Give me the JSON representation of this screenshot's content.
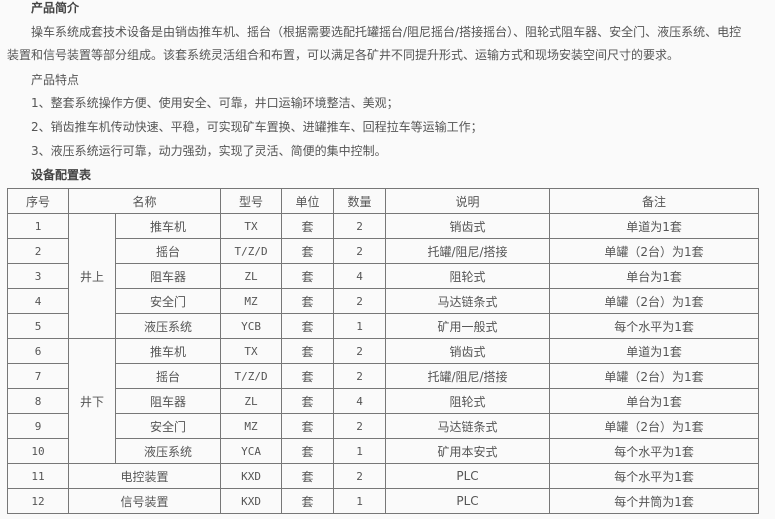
{
  "intro": {
    "title": "产品简介",
    "paragraph_line1": "操车系统成套技术设备是由销齿推车机、摇台（根据需要选配托罐摇台/阻尼摇台/搭接摇台）、阻轮式阻车器、安全门、液压系统、电控",
    "paragraph_line2": "装置和信号装置等部分组成。该套系统灵活组合和布置，可以满足各矿井不同提升形式、运输方式和现场安装空间尺寸的要求。",
    "features_title": "产品特点",
    "features": [
      "1、整套系统操作方便、使用安全、可靠，井口运输环境整洁、美观；",
      "2、销齿推车机传动快速、平稳，可实现矿车置换、进罐推车、回程拉车等运输工作；",
      "3、液压系统运行可靠，动力强劲，实现了灵活、简便的集中控制。"
    ],
    "table_title": "设备配置表"
  },
  "table": {
    "headers": [
      "序号",
      "名称",
      "型号",
      "单位",
      "数量",
      "说明",
      "备注"
    ],
    "groups": [
      "井上",
      "井下"
    ],
    "rows": [
      {
        "no": "1",
        "name": "推车机",
        "model": "TX",
        "unit": "套",
        "qty": "2",
        "desc": "销齿式",
        "note": "单道为1套"
      },
      {
        "no": "2",
        "name": "摇台",
        "model": "T/Z/D",
        "unit": "套",
        "qty": "2",
        "desc": "托罐/阻尼/搭接",
        "note": "单罐（2台）为1套"
      },
      {
        "no": "3",
        "name": "阻车器",
        "model": "ZL",
        "unit": "套",
        "qty": "4",
        "desc": "阻轮式",
        "note": "单台为1套"
      },
      {
        "no": "4",
        "name": "安全门",
        "model": "MZ",
        "unit": "套",
        "qty": "2",
        "desc": "马达链条式",
        "note": "单罐（2台）为1套"
      },
      {
        "no": "5",
        "name": "液压系统",
        "model": "YCB",
        "unit": "套",
        "qty": "1",
        "desc": "矿用一般式",
        "note": "每个水平为1套"
      },
      {
        "no": "6",
        "name": "推车机",
        "model": "TX",
        "unit": "套",
        "qty": "2",
        "desc": "销齿式",
        "note": "单道为1套"
      },
      {
        "no": "7",
        "name": "摇台",
        "model": "T/Z/D",
        "unit": "套",
        "qty": "2",
        "desc": "托罐/阻尼/搭接",
        "note": "单罐（2台）为1套"
      },
      {
        "no": "8",
        "name": "阻车器",
        "model": "ZL",
        "unit": "套",
        "qty": "4",
        "desc": "阻轮式",
        "note": "单台为1套"
      },
      {
        "no": "9",
        "name": "安全门",
        "model": "MZ",
        "unit": "套",
        "qty": "2",
        "desc": "马达链条式",
        "note": "单罐（2台）为1套"
      },
      {
        "no": "10",
        "name": "液压系统",
        "model": "YCA",
        "unit": "套",
        "qty": "1",
        "desc": "矿用本安式",
        "note": "每个水平为1套"
      },
      {
        "no": "11",
        "name": "电控装置",
        "model": "KXD",
        "unit": "套",
        "qty": "2",
        "desc": "PLC",
        "note": "每个水平为1套"
      },
      {
        "no": "12",
        "name": "信号装置",
        "model": "KXD",
        "unit": "套",
        "qty": "1",
        "desc": "PLC",
        "note": "每个井筒为1套"
      }
    ]
  }
}
